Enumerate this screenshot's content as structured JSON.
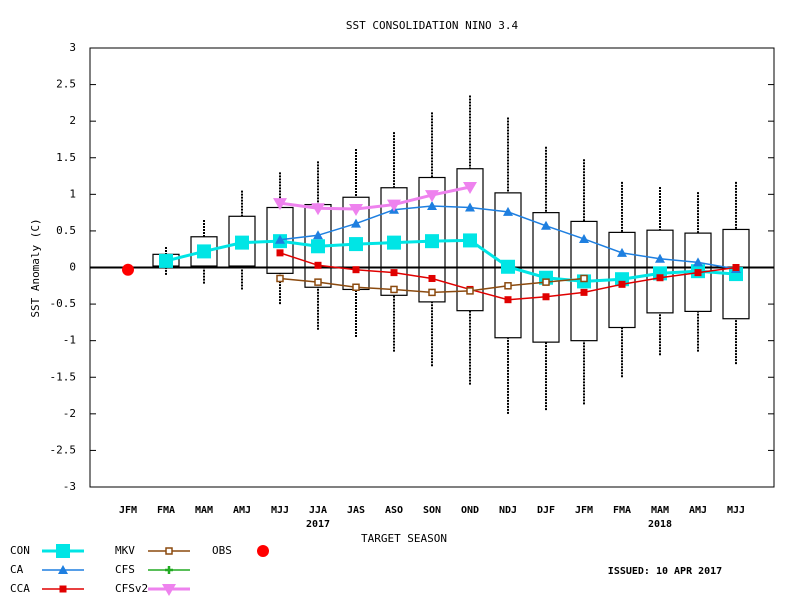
{
  "chart_data": {
    "type": "box_line",
    "title": "SST CONSOLIDATION NINO 3.4",
    "y_label": "SST Anomaly (C)",
    "x_label": "TARGET SEASON",
    "issued": "ISSUED: 10 APR 2017",
    "categories": [
      "JFM",
      "FMA",
      "MAM",
      "AMJ",
      "MJJ",
      "JJA",
      "JAS",
      "ASO",
      "SON",
      "OND",
      "NDJ",
      "DJF",
      "JFM",
      "FMA",
      "MAM",
      "AMJ",
      "MJJ"
    ],
    "year_labels": [
      null,
      null,
      null,
      null,
      null,
      "2017",
      null,
      null,
      null,
      null,
      null,
      null,
      null,
      null,
      "2018",
      null,
      null
    ],
    "ylim": [
      -3,
      3
    ],
    "yticks": [
      -3,
      -2.5,
      -2,
      -1.5,
      -1,
      -0.5,
      0,
      0.5,
      1,
      1.5,
      2,
      2.5,
      3
    ],
    "boxes": {
      "box_low": [
        null,
        0.02,
        0.02,
        0.02,
        -0.08,
        -0.27,
        -0.3,
        -0.38,
        -0.47,
        -0.59,
        -0.96,
        -1.02,
        -1.0,
        -0.82,
        -0.62,
        -0.6,
        -0.7
      ],
      "box_high": [
        null,
        0.18,
        0.42,
        0.7,
        0.82,
        0.86,
        0.96,
        1.09,
        1.23,
        1.35,
        1.02,
        0.75,
        0.63,
        0.48,
        0.51,
        0.47,
        0.52
      ],
      "whisker_low": [
        null,
        -0.1,
        -0.22,
        -0.3,
        -0.5,
        -0.85,
        -0.95,
        -1.15,
        -1.35,
        -1.6,
        -2.0,
        -1.95,
        -1.87,
        -1.5,
        -1.2,
        -1.15,
        -1.32
      ],
      "whisker_high": [
        null,
        0.28,
        0.65,
        1.05,
        1.3,
        1.45,
        1.62,
        1.85,
        2.12,
        2.35,
        2.05,
        1.65,
        1.48,
        1.17,
        1.1,
        1.03,
        1.17
      ]
    },
    "series": [
      {
        "name": "CON",
        "color": "#00e5e5",
        "marker": "big-square",
        "values": [
          null,
          0.09,
          0.22,
          0.34,
          0.36,
          0.29,
          0.32,
          0.34,
          0.36,
          0.37,
          0.01,
          -0.14,
          -0.19,
          -0.16,
          -0.08,
          -0.05,
          -0.09
        ]
      },
      {
        "name": "CA",
        "color": "#1e7fe0",
        "marker": "triangle",
        "values": [
          null,
          null,
          null,
          null,
          0.38,
          0.44,
          0.6,
          0.79,
          0.84,
          0.82,
          0.76,
          0.57,
          0.39,
          0.2,
          0.12,
          0.07,
          -0.02
        ]
      },
      {
        "name": "CCA",
        "color": "#e00000",
        "marker": "square",
        "values": [
          null,
          null,
          null,
          null,
          0.2,
          0.03,
          -0.03,
          -0.07,
          -0.15,
          -0.3,
          -0.44,
          -0.4,
          -0.34,
          -0.23,
          -0.14,
          -0.07,
          0.0
        ]
      },
      {
        "name": "MKV",
        "color": "#8b4a0f",
        "marker": "open-square",
        "values": [
          null,
          null,
          null,
          null,
          -0.15,
          -0.2,
          -0.27,
          -0.3,
          -0.34,
          -0.32,
          -0.25,
          -0.2,
          -0.15,
          null,
          null,
          null,
          null
        ]
      },
      {
        "name": "CFS",
        "color": "#22aa22",
        "marker": "star",
        "values": [
          null,
          null,
          null,
          null,
          null,
          null,
          null,
          null,
          null,
          null,
          null,
          null,
          null,
          null,
          null,
          null,
          null
        ]
      },
      {
        "name": "CFSv2",
        "color": "#ee82ee",
        "marker": "down-triangle",
        "values": [
          null,
          null,
          null,
          null,
          0.88,
          0.81,
          0.8,
          0.86,
          0.99,
          1.1,
          null,
          null,
          null,
          null,
          null,
          null,
          null
        ]
      },
      {
        "name": "OBS",
        "color": "#ff0000",
        "marker": "octagon",
        "values": [
          -0.03,
          null,
          null,
          null,
          null,
          null,
          null,
          null,
          null,
          null,
          null,
          null,
          null,
          null,
          null,
          null,
          null
        ]
      }
    ]
  }
}
